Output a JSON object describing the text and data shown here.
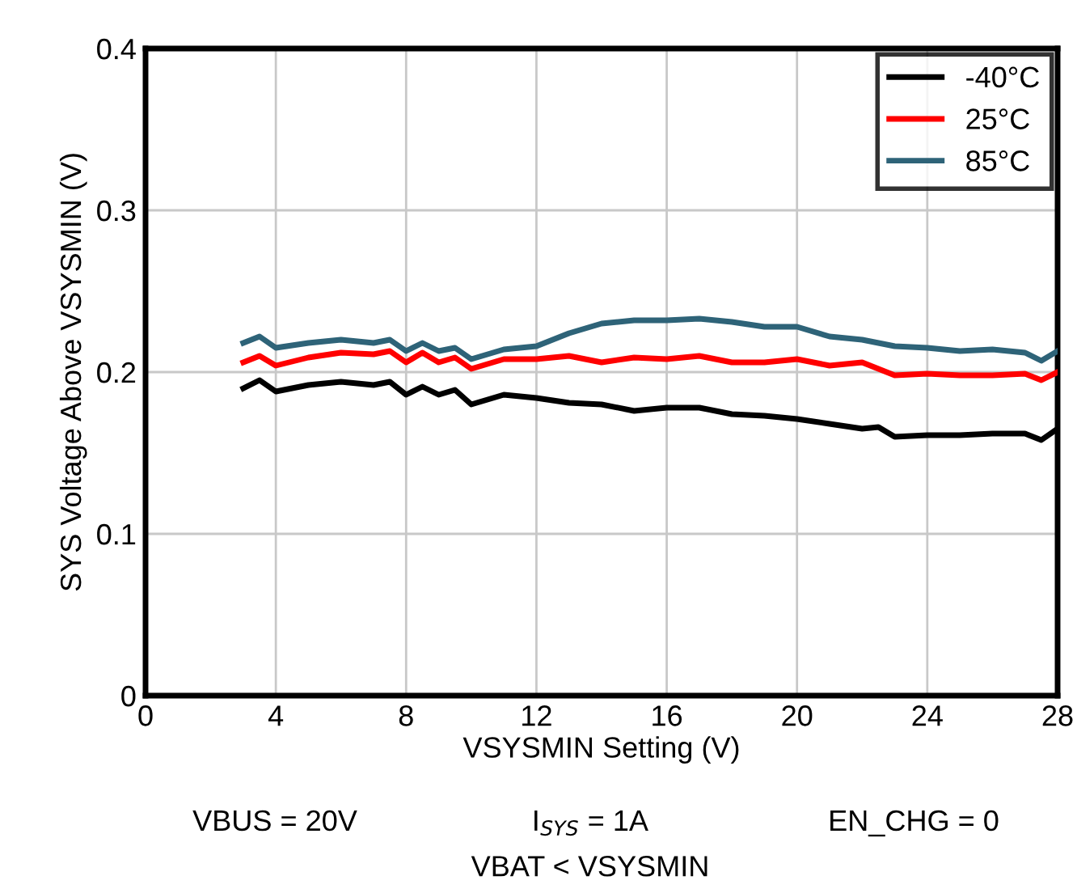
{
  "chart_data": {
    "type": "line",
    "xlabel": "VSYSMIN Setting (V)",
    "ylabel": "SYS Voltage Above VSYSMIN (V)",
    "xlim": [
      0,
      28
    ],
    "xticks": [
      0,
      4,
      8,
      12,
      16,
      20,
      24,
      28
    ],
    "ylim": [
      0,
      0.4
    ],
    "yticks": [
      0,
      0.1,
      0.2,
      0.3,
      0.4
    ],
    "grid": true,
    "legend": "top right",
    "marker": "none",
    "line_style": "solid",
    "x": [
      3,
      3.5,
      4,
      5,
      6,
      7,
      7.5,
      8,
      8.5,
      9,
      9.5,
      10,
      11,
      12,
      13,
      14,
      15,
      16,
      17,
      18,
      19,
      20,
      21,
      22,
      22.5,
      23,
      24,
      25,
      26,
      27,
      27.5,
      28
    ],
    "series": [
      {
        "name": "-40°C",
        "color": "#000000",
        "values": [
          0.19,
          0.195,
          0.188,
          0.192,
          0.194,
          0.192,
          0.194,
          0.186,
          0.191,
          0.186,
          0.189,
          0.18,
          0.186,
          0.184,
          0.181,
          0.18,
          0.176,
          0.178,
          0.178,
          0.174,
          0.173,
          0.171,
          0.168,
          0.165,
          0.166,
          0.16,
          0.161,
          0.161,
          0.162,
          0.162,
          0.158,
          0.165
        ]
      },
      {
        "name": "25°C",
        "color": "#ff0000",
        "values": [
          0.206,
          0.21,
          0.204,
          0.209,
          0.212,
          0.211,
          0.213,
          0.206,
          0.212,
          0.206,
          0.209,
          0.202,
          0.208,
          0.208,
          0.21,
          0.206,
          0.209,
          0.208,
          0.21,
          0.206,
          0.206,
          0.208,
          0.204,
          0.206,
          0.202,
          0.198,
          0.199,
          0.198,
          0.198,
          0.199,
          0.195,
          0.2
        ]
      },
      {
        "name": "85°C",
        "color": "#2e6378",
        "values": [
          0.218,
          0.222,
          0.215,
          0.218,
          0.22,
          0.218,
          0.22,
          0.213,
          0.218,
          0.213,
          0.215,
          0.208,
          0.214,
          0.216,
          0.224,
          0.23,
          0.232,
          0.232,
          0.233,
          0.231,
          0.228,
          0.228,
          0.222,
          0.22,
          0.218,
          0.216,
          0.215,
          0.213,
          0.214,
          0.212,
          0.207,
          0.213
        ]
      }
    ],
    "annotations": [
      "VBUS = 20V",
      "I$_{SYS}$ = 1A",
      "EN_CHG = 0",
      "VBAT < VSYSMIN"
    ]
  }
}
